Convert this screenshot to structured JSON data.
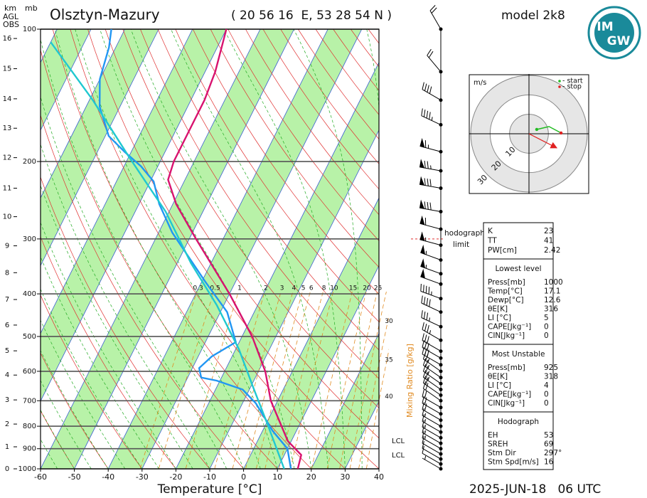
{
  "chart_data": [
    {
      "type": "skewt",
      "title": "Olsztyn-Mazury",
      "subtitle": "( 20 56 16  E, 53 28 54 N )",
      "model": "model 2k8",
      "date": "2025-JUN-18   06 UTC",
      "xlabel": "Temperature [°C]",
      "ylabel": "mb",
      "height_label": [
        "km",
        "AGL",
        "OBS"
      ],
      "xlim": [
        -60,
        40
      ],
      "xticks": [
        -60,
        -50,
        -40,
        -30,
        -20,
        -10,
        0,
        10,
        20,
        30,
        40
      ],
      "ylim": [
        1000,
        100
      ],
      "yticks": [
        100,
        200,
        300,
        400,
        500,
        600,
        700,
        800,
        900,
        1000
      ],
      "log_y": true,
      "grid": true,
      "heights": {
        "values": [
          0,
          1,
          2,
          3,
          4,
          5,
          6,
          7,
          8,
          9,
          10,
          11,
          12,
          13,
          14,
          15,
          16
        ],
        "pressure": [
          1000,
          891,
          791,
          697,
          612,
          539,
          471,
          412,
          358,
          311,
          267,
          230,
          196,
          168,
          144,
          123,
          105
        ]
      },
      "series": [
        {
          "color": "#d8126f",
          "pressure": [
            1000,
            930,
            865,
            700,
            600,
            500,
            400,
            300,
            250,
            220,
            200,
            170,
            145,
            125,
            100
          ],
          "values": [
            16,
            15,
            9,
            -2,
            -8,
            -17,
            -30,
            -48,
            -59,
            -65,
            -66,
            -66,
            -66,
            -67,
            -70
          ]
        },
        {
          "color": "#2196f3",
          "pressure": [
            1000,
            900,
            820,
            710,
            660,
            630,
            620,
            590,
            555,
            515,
            440,
            375,
            290,
            250,
            222,
            205,
            190,
            175,
            150,
            130,
            110,
            100
          ],
          "values": [
            14,
            10,
            3,
            -6,
            -12,
            -21,
            -26,
            -28,
            -26,
            -21,
            -28,
            -39,
            -56,
            -64,
            -69,
            -75,
            -82,
            -89,
            -96,
            -100,
            -102,
            -104
          ]
        },
        {
          "color": "#20c8d0",
          "pressure": [
            1000,
            800,
            655,
            535,
            425,
            340,
            260,
            195,
            145,
            107
          ],
          "values": [
            12,
            1,
            -9,
            -19,
            -32,
            -46,
            -61,
            -80,
            -99,
            -120
          ]
        }
      ],
      "mixing_ratio": {
        "label": "Mixing Ratio [g/kg]",
        "color": "#e08a20",
        "values": [
          0.3,
          0.5,
          1,
          2,
          3,
          4,
          5,
          6,
          8,
          10,
          15,
          20,
          25,
          30,
          35,
          40
        ]
      },
      "lcl": [
        {
          "label": "LCL",
          "pressure": 865
        },
        {
          "label": "LCL",
          "pressure": 932
        }
      ],
      "hodograph_limit": {
        "label": [
          "hodograph",
          "limit"
        ],
        "pressure": 300
      },
      "winds": {
        "pressure": [
          100,
          125,
          145,
          165,
          190,
          210,
          230,
          260,
          285,
          310,
          335,
          360,
          380,
          410,
          440,
          475,
          510,
          540,
          560,
          580,
          600,
          620,
          640,
          660,
          680,
          700,
          725,
          750,
          775,
          800,
          825,
          850,
          875,
          900,
          925,
          950,
          975,
          1000
        ],
        "speed": [
          20,
          20,
          40,
          45,
          65,
          75,
          80,
          80,
          60,
          55,
          55,
          55,
          50,
          45,
          40,
          35,
          35,
          30,
          30,
          30,
          25,
          25,
          25,
          25,
          20,
          20,
          20,
          20,
          20,
          15,
          15,
          15,
          15,
          15,
          10,
          10,
          10,
          5
        ],
        "direction": [
          330,
          320,
          300,
          295,
          285,
          280,
          280,
          280,
          285,
          285,
          290,
          290,
          290,
          290,
          295,
          295,
          300,
          300,
          300,
          300,
          305,
          305,
          305,
          305,
          305,
          305,
          300,
          300,
          300,
          300,
          300,
          300,
          300,
          300,
          300,
          300,
          300,
          300
        ]
      }
    },
    {
      "type": "hodograph",
      "unit": "m/s",
      "rlim": 30,
      "rticks": [
        10,
        20,
        30
      ],
      "legend": [
        "- start",
        "- stop"
      ],
      "start_color": "#22bb22",
      "stop_color": "#e02020",
      "u": [
        4,
        10.3,
        16.5
      ],
      "v": [
        2.2,
        3.7,
        0.4
      ]
    }
  ],
  "logo": {
    "top": "IM",
    "bottom": "GW"
  },
  "indices": {
    "summary": [
      [
        "K",
        23
      ],
      [
        "TT",
        41
      ],
      [
        "PW[cm]",
        2.42
      ]
    ],
    "sections": [
      {
        "title": "Lowest level",
        "rows": [
          [
            "Press[mb]",
            1000
          ],
          [
            "Temp[°C]",
            17.1
          ],
          [
            "Dewp[°C]",
            12.6
          ],
          [
            "θE[K]",
            316
          ],
          [
            "LI [°C]",
            5
          ],
          [
            "CAPE[Jkg⁻¹]",
            0
          ],
          [
            "CIN[Jkg⁻¹]",
            0
          ]
        ]
      },
      {
        "title": "Most Unstable",
        "rows": [
          [
            "Press[mb]",
            925
          ],
          [
            "θE[K]",
            318
          ],
          [
            "LI [°C]",
            4
          ],
          [
            "CAPE[Jkg⁻¹]",
            0
          ],
          [
            "CIN[Jkg⁻¹]",
            0
          ]
        ]
      },
      {
        "title": "Hodograph",
        "rows": [
          [
            "EH",
            53
          ],
          [
            "SREH",
            69
          ],
          [
            "Stm Dir",
            {
              "value": 297,
              "label": "297°"
            }
          ],
          [
            "Stm Spd[m/s]",
            16
          ]
        ]
      }
    ]
  }
}
